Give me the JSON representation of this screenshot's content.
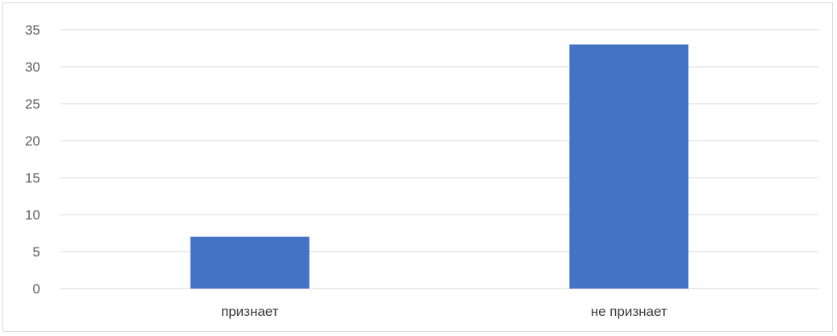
{
  "chart_data": {
    "type": "bar",
    "title": "",
    "xlabel": "",
    "ylabel": "",
    "categories": [
      "признает",
      "не признает"
    ],
    "values": [
      7,
      33
    ],
    "ylim": [
      0,
      35
    ],
    "yticks": [
      0,
      5,
      10,
      15,
      20,
      25,
      30,
      35
    ],
    "grid": true,
    "legend": "none",
    "colors": {
      "bar": "#4472C4",
      "grid": "#d9d9d9",
      "axis": "#d9d9d9"
    }
  }
}
